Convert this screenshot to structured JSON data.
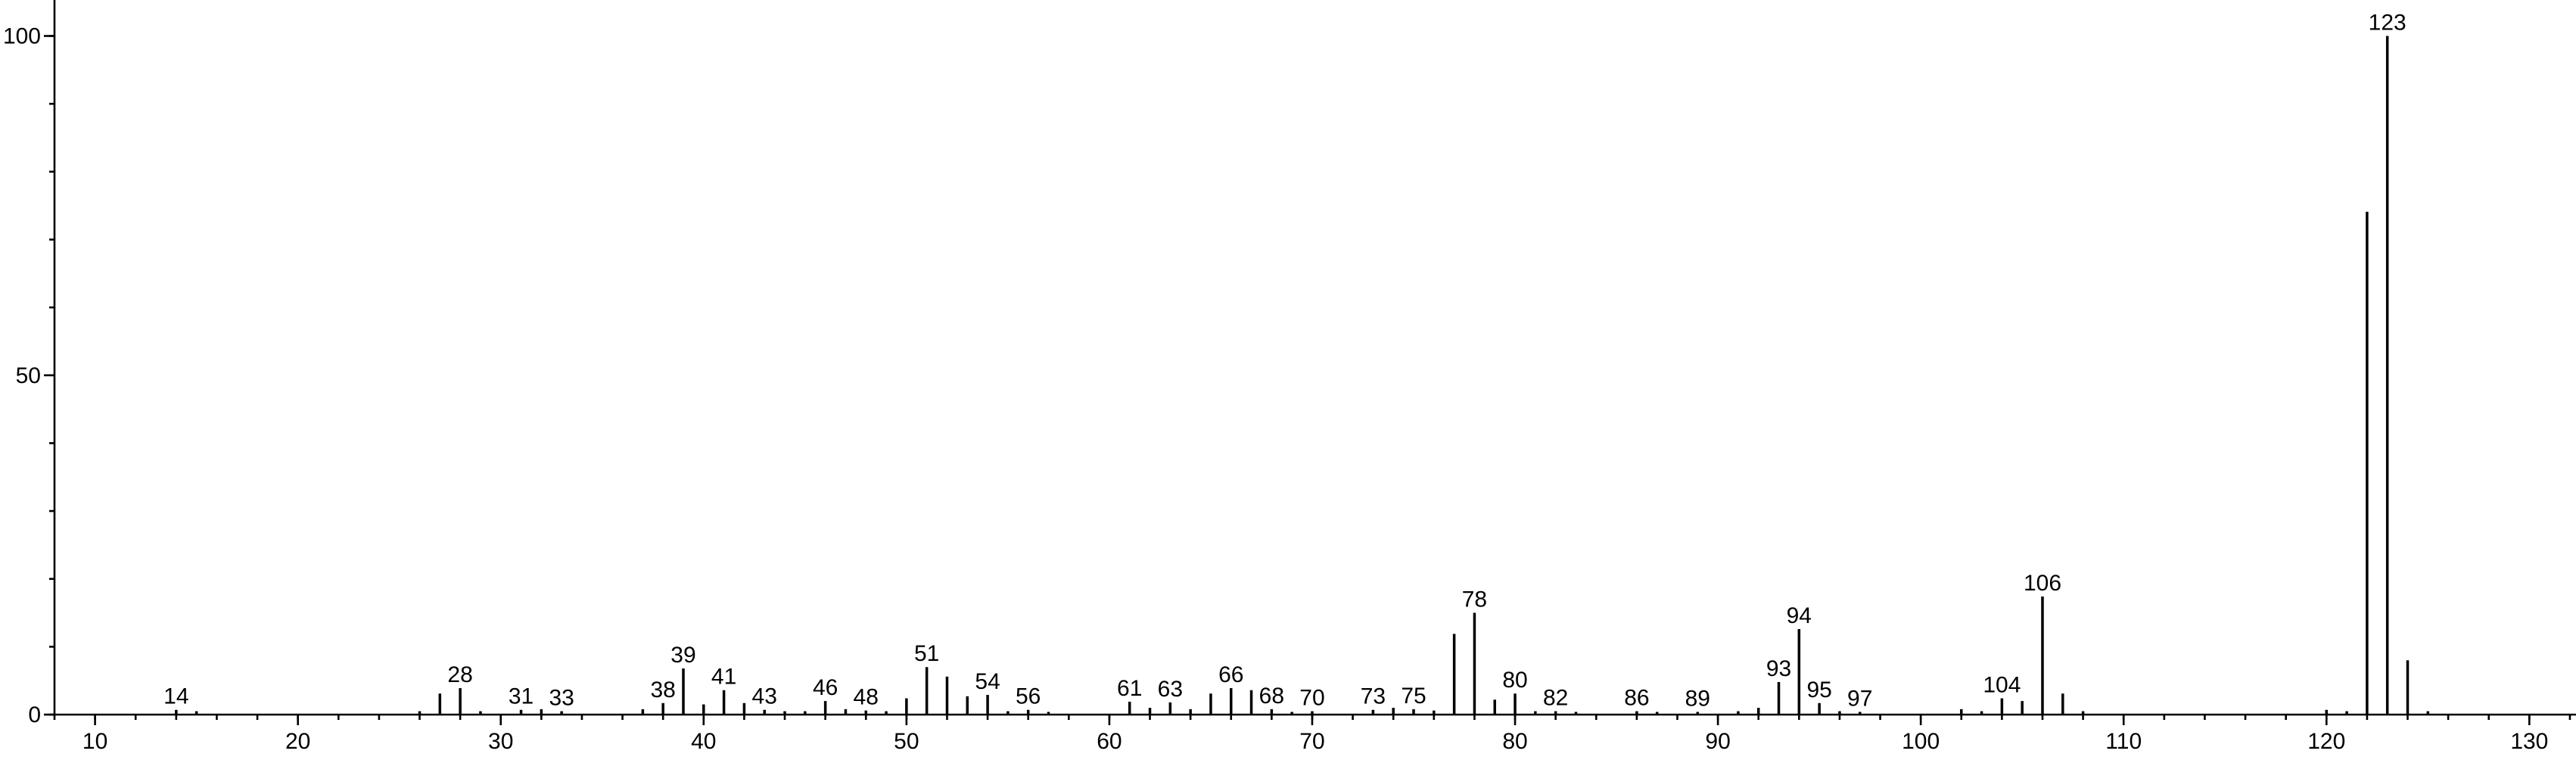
{
  "chart_data": {
    "type": "bar",
    "x": [
      14,
      15,
      26,
      27,
      28,
      29,
      31,
      32,
      33,
      37,
      38,
      39,
      40,
      41,
      42,
      43,
      44,
      45,
      46,
      47,
      48,
      49,
      50,
      51,
      52,
      53,
      54,
      55,
      56,
      57,
      61,
      62,
      63,
      64,
      65,
      66,
      67,
      68,
      69,
      70,
      73,
      74,
      75,
      76,
      77,
      78,
      79,
      80,
      81,
      82,
      83,
      86,
      87,
      89,
      91,
      92,
      93,
      94,
      95,
      96,
      97,
      102,
      103,
      104,
      105,
      106,
      107,
      108,
      120,
      121,
      122,
      123,
      124,
      125
    ],
    "values": [
      0.7,
      0.5,
      0.5,
      3.1,
      3.9,
      0.5,
      0.7,
      0.8,
      0.5,
      0.8,
      1.7,
      6.8,
      1.5,
      3.6,
      1.7,
      0.7,
      0.5,
      0.5,
      2,
      0.8,
      0.6,
      0.5,
      2.4,
      7,
      5.6,
      2.7,
      2.9,
      0.5,
      0.7,
      0.4,
      1.9,
      1,
      1.8,
      0.8,
      3.1,
      3.9,
      3.6,
      0.8,
      0.4,
      0.5,
      0.7,
      1,
      0.8,
      0.6,
      11.9,
      15,
      2.2,
      3.1,
      0.5,
      0.5,
      0.4,
      0.5,
      0.4,
      0.4,
      0.5,
      1,
      4.8,
      12.6,
      1.7,
      0.5,
      0.4,
      0.8,
      0.5,
      2.4,
      2,
      17.4,
      3.1,
      0.5,
      0.7,
      0.5,
      74.1,
      100,
      8,
      0.5
    ],
    "labeled": [
      true,
      false,
      false,
      false,
      true,
      false,
      true,
      false,
      true,
      false,
      true,
      true,
      false,
      true,
      false,
      true,
      false,
      false,
      true,
      false,
      true,
      false,
      false,
      true,
      false,
      false,
      true,
      false,
      true,
      false,
      true,
      false,
      true,
      false,
      false,
      true,
      false,
      true,
      false,
      true,
      true,
      false,
      true,
      false,
      false,
      true,
      false,
      true,
      false,
      true,
      false,
      true,
      false,
      true,
      false,
      false,
      true,
      true,
      true,
      false,
      true,
      false,
      false,
      true,
      false,
      true,
      false,
      false,
      false,
      false,
      false,
      true,
      false,
      false
    ],
    "color": "#000000",
    "xlim": [
      8,
      132.3
    ],
    "ylim": [
      0,
      105.3
    ],
    "xticks": [
      10,
      20,
      30,
      40,
      50,
      60,
      70,
      80,
      90,
      100,
      110,
      120,
      130
    ],
    "yticks": [
      0,
      50,
      100
    ],
    "x_minor_step": 2,
    "y_minor_step": 10
  }
}
